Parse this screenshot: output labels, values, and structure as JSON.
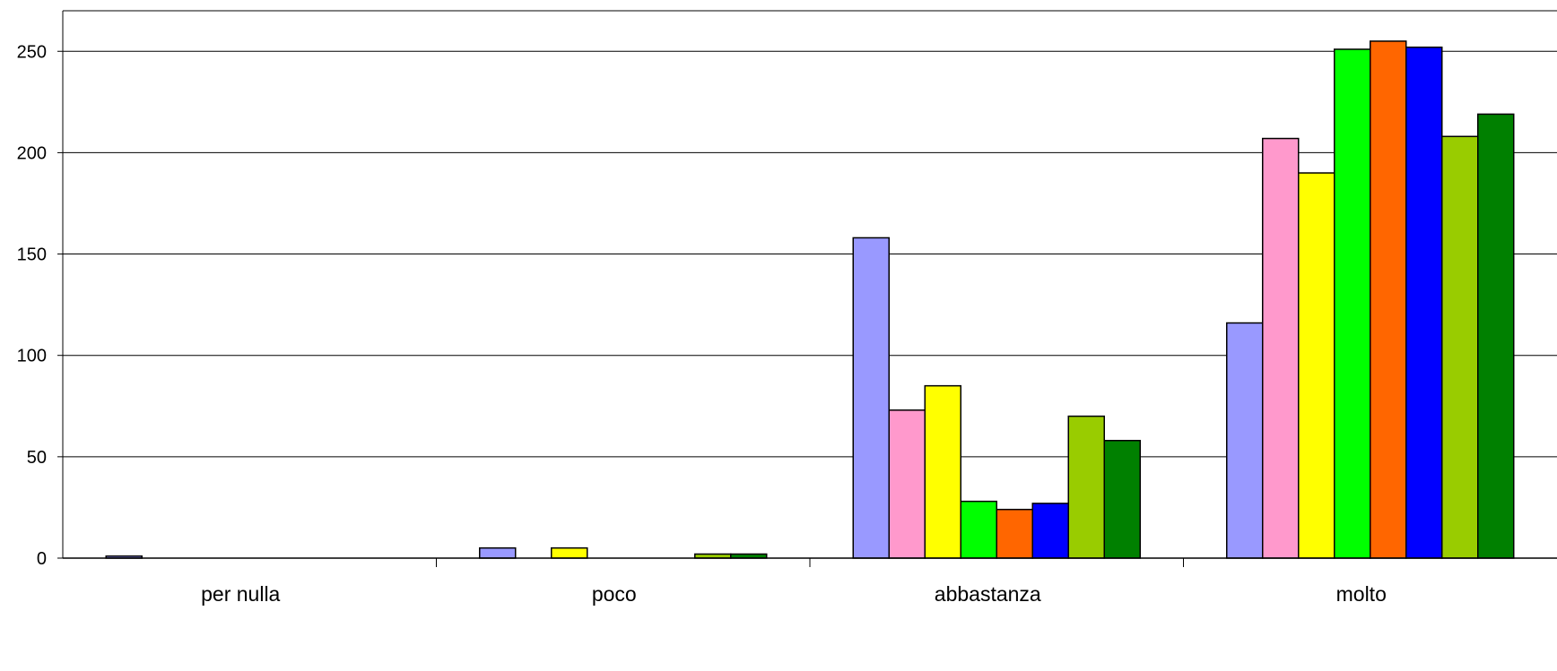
{
  "chart_data": {
    "type": "bar",
    "categories": [
      "per nulla",
      "poco",
      "abbastanza",
      "molto"
    ],
    "ylim": [
      0,
      270
    ],
    "yticks": [
      0,
      50,
      100,
      150,
      200,
      250
    ],
    "grid": true,
    "legend": "none",
    "series": [
      {
        "color": "#9999ff",
        "values": [
          1,
          5,
          158,
          116
        ]
      },
      {
        "color": "#ff99cc",
        "values": [
          0,
          0,
          73,
          207
        ]
      },
      {
        "color": "#ffff00",
        "values": [
          0,
          5,
          85,
          190
        ]
      },
      {
        "color": "#00ff00",
        "values": [
          0,
          0,
          28,
          251
        ]
      },
      {
        "color": "#ff6600",
        "values": [
          0,
          0,
          24,
          255
        ]
      },
      {
        "color": "#0000ff",
        "values": [
          0,
          0,
          27,
          252
        ]
      },
      {
        "color": "#99cc00",
        "values": [
          0,
          2,
          70,
          208
        ]
      },
      {
        "color": "#008000",
        "values": [
          0,
          2,
          58,
          219
        ]
      }
    ]
  }
}
